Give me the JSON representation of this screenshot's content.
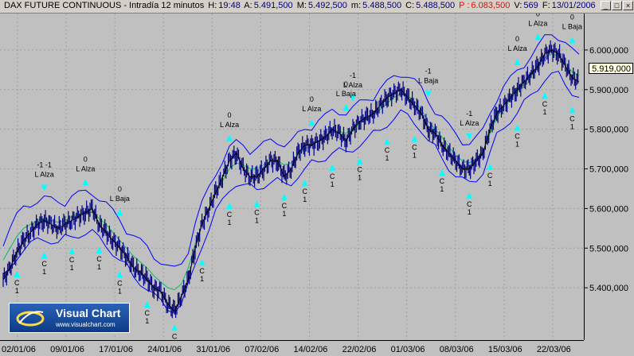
{
  "window": {
    "title": "DAX FUTURE CONTINUOUS - Intradía 12 minutos",
    "h_label": "H:",
    "h_value": "19:48",
    "a_label": "A:",
    "a_value": "5.491,500",
    "m_label": "M:",
    "m_value": "5.492,500",
    "mn_label": "m:",
    "mn_value": "5.488,500",
    "c_label": "C:",
    "c_value": "5.488,500",
    "p_label": "P :",
    "p_value": "6.083,500",
    "v_label": "V:",
    "v_value": "569",
    "f_label": "F:",
    "f_value": "13/01/2006",
    "btn_min": "_",
    "btn_max": "□",
    "btn_close": "×"
  },
  "colors": {
    "background": "#c0c0c0",
    "price": "#000080",
    "bands": "#0000ff",
    "fast_ma": "#00c060",
    "down_ma": "#ff3030",
    "signal_arrow": "#00ffff",
    "sell_arrow": "#ff6060"
  },
  "chart_data": {
    "type": "line",
    "y_ticks": [
      "6.000,000",
      "5.900,000",
      "5.800,000",
      "5.700,000",
      "5.600,000",
      "5.500,000",
      "5.400,000"
    ],
    "y_tick_values": [
      6000,
      5900,
      5800,
      5700,
      5600,
      5500,
      5400
    ],
    "ylim": [
      5280,
      6080
    ],
    "x_ticks": [
      "02/01/06",
      "09/01/06",
      "17/01/06",
      "24/01/06",
      "31/01/06",
      "07/02/06",
      "14/02/06",
      "22/02/06",
      "01/03/06",
      "08/03/06",
      "15/03/06",
      "22/03/06"
    ],
    "last_price": "5.919,000",
    "series": [
      {
        "values": [
          5420,
          5450,
          5490,
          5520,
          5540,
          5560,
          5570,
          5560,
          5550,
          5560,
          5570,
          5580,
          5590,
          5600,
          5560,
          5540,
          5520,
          5500,
          5480,
          5450,
          5440,
          5420,
          5400,
          5390,
          5360,
          5340,
          5380,
          5420,
          5500,
          5560,
          5600,
          5640,
          5680,
          5720,
          5740,
          5700,
          5680,
          5680,
          5700,
          5720,
          5720,
          5680,
          5700,
          5740,
          5760,
          5760,
          5770,
          5780,
          5800,
          5790,
          5770,
          5800,
          5820,
          5830,
          5840,
          5860,
          5880,
          5890,
          5900,
          5880,
          5860,
          5840,
          5800,
          5790,
          5760,
          5740,
          5720,
          5700,
          5700,
          5720,
          5740,
          5800,
          5840,
          5860,
          5880,
          5900,
          5920,
          5940,
          5960,
          5990,
          6000,
          5990,
          5960,
          5930,
          5920
        ]
      },
      {
        "name": "",
        "values": [
          5470,
          5500,
          5530,
          5550,
          5560,
          5570,
          5575,
          5570,
          5565,
          5570,
          5580,
          5585,
          5590,
          5590,
          5575,
          5560,
          5540,
          5520,
          5500,
          5480,
          5465,
          5450,
          5430,
          5415,
          5400,
          5395,
          5410,
          5450,
          5510,
          5560,
          5600,
          5640,
          5670,
          5700,
          5715,
          5710,
          5700,
          5700,
          5710,
          5720,
          5720,
          5710,
          5715,
          5735,
          5750,
          5760,
          5770,
          5780,
          5795,
          5795,
          5790,
          5800,
          5815,
          5825,
          5835,
          5850,
          5865,
          5880,
          5890,
          5885,
          5870,
          5850,
          5820,
          5800,
          5780,
          5755,
          5735,
          5720,
          5715,
          5725,
          5745,
          5790,
          5830,
          5855,
          5875,
          5895,
          5915,
          5935,
          5955,
          5980,
          5990,
          5985,
          5965,
          5945,
          5935
        ]
      }
    ],
    "annotations": [
      {
        "label": "L Alza",
        "top": "-1 -1",
        "dir": "down"
      },
      {
        "label": "L Alza",
        "top": "0",
        "dir": "up"
      },
      {
        "label": "L Baja",
        "top": "0",
        "dir": "up"
      },
      {
        "label": "L Alza",
        "top": "0",
        "dir": "up"
      },
      {
        "label": "L Alza",
        "top": "0",
        "dir": "up"
      },
      {
        "label": "L Alza",
        "top": "-1",
        "dir": "down"
      },
      {
        "label": "L Baja",
        "top": "0",
        "dir": "up"
      },
      {
        "label": "L Baja",
        "top": "-1",
        "dir": "down"
      },
      {
        "label": "L Alza",
        "top": "-1",
        "dir": "down"
      },
      {
        "label": "L Alza",
        "top": "0",
        "dir": "up"
      },
      {
        "label": "L Alza",
        "top": "0",
        "dir": "up"
      },
      {
        "label": "L Baja",
        "top": "0",
        "dir": "up"
      }
    ],
    "c1_marks": 22
  },
  "logo": {
    "name": "Visual Chart",
    "url": "www.visualchart.com"
  }
}
